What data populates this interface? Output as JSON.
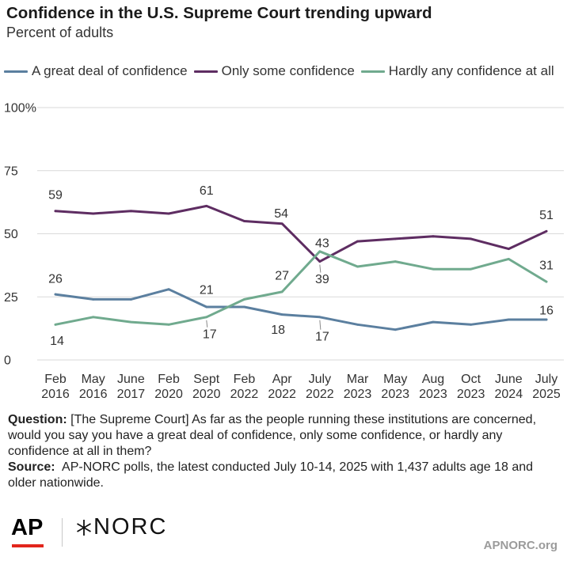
{
  "chart_data": {
    "type": "line",
    "title": "Confidence in the U.S. Supreme Court trending upward",
    "subtitle": "Percent of adults",
    "xlabel": "",
    "ylabel": "",
    "ylim": [
      0,
      100
    ],
    "y_ticks": [
      0,
      25,
      50,
      75,
      100
    ],
    "y_tick_labels": [
      "0",
      "25",
      "50",
      "75",
      "100%"
    ],
    "grid": true,
    "legend_position": "top",
    "categories": [
      "Feb 2016",
      "May 2016",
      "June 2017",
      "Feb 2020",
      "Sept 2020",
      "Feb 2022",
      "Apr 2022",
      "July 2022",
      "Mar 2023",
      "May 2023",
      "Aug 2023",
      "Oct 2023",
      "June 2024",
      "July 2025"
    ],
    "series": [
      {
        "name": "A great deal of confidence",
        "color": "#5b7f9f",
        "values": [
          26,
          24,
          24,
          28,
          21,
          21,
          18,
          17,
          14,
          12,
          15,
          14,
          16,
          16
        ],
        "labeled_points": [
          0,
          4,
          6,
          7,
          13
        ]
      },
      {
        "name": "Only some confidence",
        "color": "#5e2d62",
        "values": [
          59,
          58,
          59,
          58,
          61,
          55,
          54,
          39,
          47,
          48,
          49,
          48,
          44,
          51
        ],
        "labeled_points": [
          0,
          4,
          6,
          7,
          13
        ]
      },
      {
        "name": "Hardly any confidence at all",
        "color": "#70aa8e",
        "values": [
          14,
          17,
          15,
          14,
          17,
          24,
          27,
          43,
          37,
          39,
          36,
          36,
          40,
          31
        ],
        "labeled_points": [
          0,
          4,
          6,
          7,
          13
        ]
      }
    ]
  },
  "footer": {
    "question_label": "Question:",
    "question_text": "[The Supreme Court] As far as the people running these institutions are concerned, would you say you have a great deal of confidence, only some confidence, or hardly any confidence at all in them?",
    "source_label": "Source:",
    "source_text": "AP-NORC polls, the latest conducted July 10-14, 2025 with 1,437 adults age 18 and older nationwide."
  },
  "branding": {
    "ap_logo": "AP",
    "ap_red": "#e2261c",
    "norc_logo": "NORC",
    "website": "APNORC.org"
  }
}
